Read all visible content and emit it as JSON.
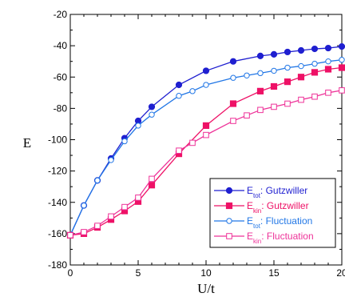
{
  "chart_data": {
    "type": "line",
    "title": "",
    "xlabel": "U/t",
    "ylabel": "E",
    "xlim": [
      0,
      20
    ],
    "ylim": [
      -180,
      -20
    ],
    "x_ticks": [
      0,
      5,
      10,
      15,
      20
    ],
    "y_ticks": [
      -20,
      -40,
      -60,
      -80,
      -100,
      -120,
      -140,
      -160,
      -180
    ],
    "x_tick_labels": [
      "0",
      "5",
      "10",
      "15",
      "20"
    ],
    "y_tick_labels": [
      "-20",
      "-40",
      "-60",
      "-80",
      "-100",
      "-120",
      "-140",
      "-160",
      "-180"
    ],
    "grid": false,
    "legend_position": "bottom-right",
    "series": [
      {
        "name": "E_tot : Gutzwiller",
        "label_main": "E",
        "label_sub": "tot",
        "label_rest": ": Gutzwiller",
        "color": "#1f1fd0",
        "marker": "circle",
        "filled": true,
        "x": [
          0,
          1,
          2,
          3,
          4,
          5,
          6,
          8,
          10,
          12,
          14,
          15,
          16,
          17,
          18,
          19,
          20
        ],
        "y": [
          -161,
          -142,
          -126,
          -112,
          -99,
          -88,
          -79,
          -65,
          -56,
          -50,
          -46.5,
          -45.5,
          -44,
          -43,
          -42,
          -41.5,
          -40.5
        ]
      },
      {
        "name": "E_kin : Gutzwiller",
        "label_main": "E",
        "label_sub": "kin",
        "label_rest": ": Gutzwiller",
        "color": "#ee1166",
        "marker": "square",
        "filled": true,
        "x": [
          0,
          1,
          2,
          3,
          4,
          5,
          6,
          8,
          10,
          12,
          14,
          15,
          16,
          17,
          18,
          19,
          20
        ],
        "y": [
          -161,
          -160,
          -156,
          -151,
          -145.5,
          -139.5,
          -129,
          -109,
          -91,
          -77,
          -69,
          -66,
          -63,
          -60,
          -57,
          -55,
          -54
        ]
      },
      {
        "name": "E_tot : Fluctuation",
        "label_main": "E",
        "label_sub": "tot",
        "label_rest": ": Fluctuation",
        "color": "#2277e6",
        "marker": "circle",
        "filled": false,
        "x": [
          0,
          1,
          2,
          3,
          4,
          5,
          6,
          8,
          9,
          10,
          12,
          13,
          14,
          15,
          16,
          17,
          18,
          19,
          20
        ],
        "y": [
          -161,
          -142,
          -126,
          -113,
          -101,
          -91,
          -84,
          -72,
          -69,
          -65,
          -60.5,
          -59,
          -57.5,
          -56,
          -54,
          -53,
          -51.5,
          -50,
          -49
        ]
      },
      {
        "name": "E_kin : Fluctuation",
        "label_main": "E",
        "label_sub": "kin",
        "label_rest": ": Fluctuation",
        "color": "#ee3399",
        "marker": "square",
        "filled": false,
        "x": [
          0,
          1,
          2,
          3,
          4,
          5,
          6,
          8,
          9,
          10,
          12,
          13,
          14,
          15,
          16,
          17,
          18,
          19,
          20
        ],
        "y": [
          -161,
          -159,
          -155,
          -149,
          -143,
          -137,
          -125,
          -107,
          -102,
          -97,
          -88,
          -84.5,
          -81,
          -79,
          -77,
          -74.5,
          -72.5,
          -70,
          -68.5
        ]
      }
    ]
  }
}
